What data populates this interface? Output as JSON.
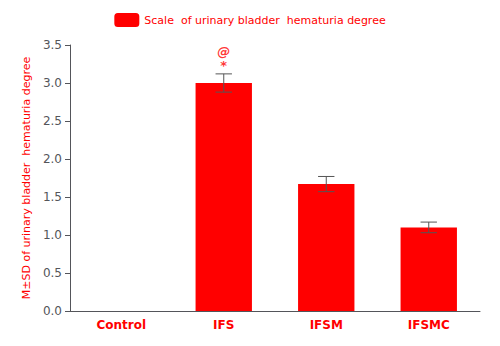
{
  "chart_data": {
    "type": "bar",
    "categories": [
      "Control",
      "IFS",
      "IFSM",
      "IFSMC"
    ],
    "values": [
      0.0,
      3.0,
      1.67,
      1.1
    ],
    "errors": [
      0.0,
      0.12,
      0.1,
      0.07
    ],
    "color": "#FF0000",
    "ylabel": "M±SD of urinary bladder  hematuria degree",
    "legend_label": "Scale  of urinary bladder  hematuria degree",
    "legend": "top",
    "grid": false,
    "ylim": [
      0,
      3.5
    ],
    "yticks": [
      {
        "value": 0,
        "label": "0.0"
      },
      0.5,
      {
        "value": 1,
        "label": "1.0"
      },
      1.5,
      {
        "value": 2,
        "label": "2.0"
      },
      2.5,
      {
        "value": 3,
        "label": "3.0"
      },
      3.5
    ],
    "annotations": [
      {
        "text": "*",
        "category": "IFS"
      },
      {
        "text": "@",
        "category": "IFS"
      }
    ]
  }
}
